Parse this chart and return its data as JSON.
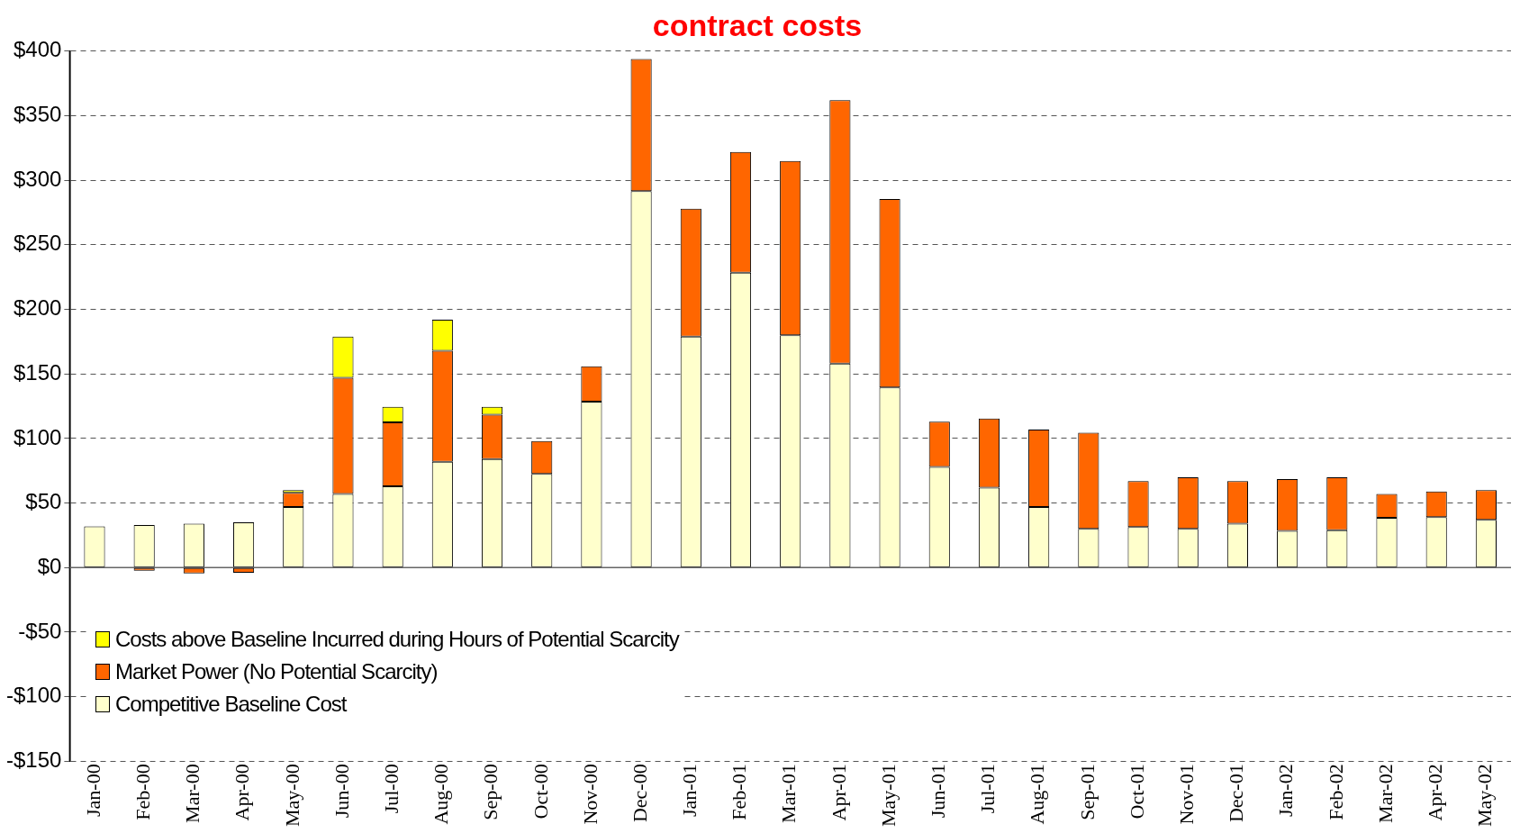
{
  "chart_data": {
    "type": "bar",
    "title": "contract costs",
    "stacked": true,
    "categories": [
      "Jan-00",
      "Feb-00",
      "Mar-00",
      "Apr-00",
      "May-00",
      "Jun-00",
      "Jul-00",
      "Aug-00",
      "Sep-00",
      "Oct-00",
      "Nov-00",
      "Dec-00",
      "Jan-01",
      "Feb-01",
      "Mar-01",
      "Apr-01",
      "May-01",
      "Jun-01",
      "Jul-01",
      "Aug-01",
      "Sep-01",
      "Oct-01",
      "Nov-01",
      "Dec-01",
      "Jan-02",
      "Feb-02",
      "Mar-02",
      "Apr-02",
      "May-02"
    ],
    "series": [
      {
        "name": "Competitive Baseline Cost",
        "color": "#ffffcc",
        "values": [
          32,
          33,
          34,
          35,
          47,
          57,
          63,
          82,
          84,
          72.5,
          128.5,
          291.5,
          179,
          228.5,
          180,
          158,
          139.5,
          78,
          62,
          47,
          30,
          31.5,
          30,
          34,
          28.5,
          29,
          38.5,
          39,
          37
        ]
      },
      {
        "name": "Market Power (No Potential Scarcity)",
        "color": "#ff6600",
        "values": [
          null,
          -2.5,
          -4.5,
          -4,
          11,
          90,
          49.5,
          86,
          34.5,
          25.5,
          27.5,
          102.5,
          99,
          93.5,
          135,
          204,
          146,
          35,
          53.5,
          60,
          74.5,
          35.5,
          40,
          33,
          40,
          41,
          18.5,
          20,
          23
        ]
      },
      {
        "name": "Costs above Baseline Incurred during Hours of Potential Scarcity",
        "color": "#ffff00",
        "values": [
          null,
          null,
          null,
          null,
          2,
          32,
          12,
          24,
          6,
          null,
          null,
          null,
          null,
          null,
          null,
          null,
          null,
          null,
          null,
          null,
          null,
          null,
          null,
          null,
          null,
          null,
          null,
          null,
          null
        ]
      }
    ],
    "ylim": [
      -150,
      400
    ],
    "yticks": [
      {
        "value": -150,
        "label": "-$150"
      },
      {
        "value": -100,
        "label": "-$100"
      },
      {
        "value": -50,
        "label": "-$50"
      },
      {
        "value": 0,
        "label": "$0"
      },
      {
        "value": 50,
        "label": "$50"
      },
      {
        "value": 100,
        "label": "$100"
      },
      {
        "value": 150,
        "label": "$150"
      },
      {
        "value": 200,
        "label": "$200"
      },
      {
        "value": 250,
        "label": "$250"
      },
      {
        "value": 300,
        "label": "$300"
      },
      {
        "value": 350,
        "label": "$350"
      },
      {
        "value": 400,
        "label": "$400"
      }
    ],
    "grid": "y",
    "legend": "bottom left"
  }
}
